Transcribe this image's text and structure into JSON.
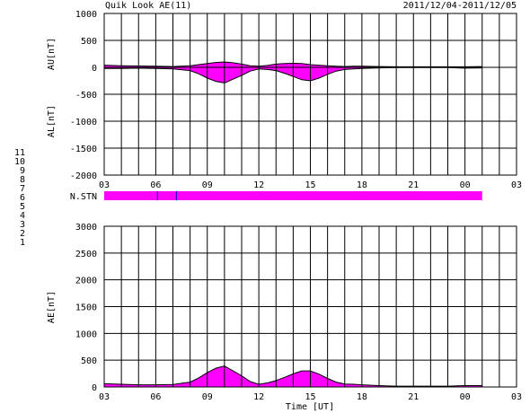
{
  "header": {
    "title": "Quik Look AE(11)",
    "date_range": "2011/12/04-2011/12/05"
  },
  "chart_data": [
    {
      "type": "area",
      "panel": "AU/AL",
      "ylabel_top": "AU[nT]",
      "ylabel_bottom": "AL[nT]",
      "ylim": [
        -2000,
        1000
      ],
      "yticks": [
        1000,
        500,
        0,
        -500,
        -1000,
        -1500,
        -2000
      ],
      "xlim": [
        3,
        27
      ],
      "xtick_labels": [
        "03",
        "06",
        "09",
        "12",
        "15",
        "18",
        "21",
        "00",
        "03"
      ],
      "grid": true,
      "series": [
        {
          "name": "AU",
          "x": [
            3.0,
            4.0,
            5.0,
            6.0,
            7.0,
            8.0,
            8.5,
            9.0,
            9.5,
            10.0,
            10.5,
            11.0,
            11.5,
            12.0,
            12.5,
            13.0,
            13.5,
            14.0,
            14.5,
            15.0,
            15.5,
            16.0,
            16.5,
            17.0,
            17.5,
            18.0,
            19.0,
            20.0,
            21.0,
            22.0,
            23.0,
            24.0,
            25.0
          ],
          "values": [
            40,
            30,
            25,
            20,
            15,
            30,
            50,
            70,
            90,
            100,
            85,
            60,
            30,
            20,
            35,
            60,
            70,
            75,
            70,
            50,
            40,
            30,
            20,
            15,
            20,
            20,
            15,
            10,
            10,
            10,
            10,
            10,
            15
          ]
        },
        {
          "name": "AL",
          "x": [
            3.0,
            4.0,
            5.0,
            6.0,
            7.0,
            8.0,
            8.5,
            9.0,
            9.5,
            10.0,
            10.5,
            11.0,
            11.5,
            12.0,
            12.5,
            13.0,
            13.5,
            14.0,
            14.5,
            15.0,
            15.5,
            16.0,
            16.5,
            17.0,
            17.5,
            18.0,
            19.0,
            20.0,
            21.0,
            22.0,
            23.0,
            24.0,
            25.0
          ],
          "values": [
            -20,
            -20,
            -15,
            -20,
            -30,
            -60,
            -120,
            -200,
            -260,
            -290,
            -220,
            -150,
            -70,
            -30,
            -40,
            -60,
            -110,
            -170,
            -230,
            -250,
            -200,
            -130,
            -70,
            -40,
            -30,
            -20,
            -10,
            -5,
            -5,
            -5,
            -5,
            -15,
            -10
          ]
        }
      ]
    },
    {
      "type": "area",
      "panel": "AE",
      "ylabel": "AE[nT]",
      "xlabel": "Time [UT]",
      "ylim": [
        0,
        3000
      ],
      "yticks": [
        3000,
        2500,
        2000,
        1500,
        1000,
        500,
        0
      ],
      "xlim": [
        3,
        27
      ],
      "xtick_labels": [
        "03",
        "06",
        "09",
        "12",
        "15",
        "18",
        "21",
        "00",
        "03"
      ],
      "grid": true,
      "series": [
        {
          "name": "AE",
          "x": [
            3.0,
            4.0,
            5.0,
            6.0,
            7.0,
            8.0,
            8.5,
            9.0,
            9.5,
            10.0,
            10.5,
            11.0,
            11.5,
            12.0,
            12.5,
            13.0,
            13.5,
            14.0,
            14.5,
            15.0,
            15.5,
            16.0,
            16.5,
            17.0,
            17.5,
            18.0,
            19.0,
            20.0,
            21.0,
            22.0,
            23.0,
            24.0,
            25.0
          ],
          "values": [
            60,
            50,
            40,
            40,
            45,
            90,
            170,
            270,
            350,
            390,
            300,
            210,
            100,
            50,
            75,
            120,
            180,
            245,
            300,
            300,
            240,
            160,
            90,
            55,
            50,
            40,
            25,
            15,
            15,
            15,
            15,
            25,
            25
          ]
        }
      ]
    }
  ],
  "station_bar": {
    "label": "N.STN",
    "end_hour": 25.0,
    "marks_hours": [
      6.1,
      7.2
    ],
    "fill_color": "#ff00ff",
    "mark_color": "#0000cc"
  },
  "station_legend": [
    {
      "label": "11",
      "color": "#00e5e5"
    },
    {
      "label": "10",
      "color": "#ff00ff"
    },
    {
      "label": "9",
      "color": "#0000ff"
    },
    {
      "label": "8",
      "color": "#e8e800"
    },
    {
      "label": "7",
      "color": "#33cc33"
    },
    {
      "label": "6",
      "color": "#ff0000"
    },
    {
      "label": "5",
      "color": "#bbbbbb"
    },
    {
      "label": "4",
      "color": "#888888"
    },
    {
      "label": "3",
      "color": "#00aaaa"
    },
    {
      "label": "2",
      "color": "#cc0099"
    },
    {
      "label": "1",
      "color": "#0000aa"
    }
  ],
  "colors": {
    "fill": "#ff00ff",
    "line": "#000000",
    "grid": "#000000"
  }
}
